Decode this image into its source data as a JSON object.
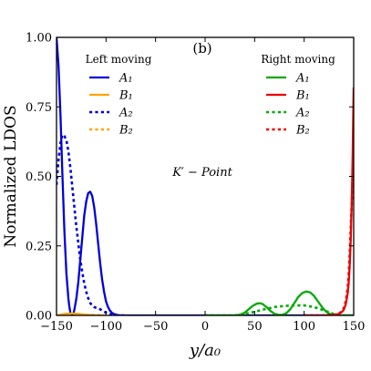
{
  "chart_data": {
    "type": "line",
    "panel_label": "(b)",
    "annotation": "K′ − Point",
    "xlabel": "y/a₀",
    "ylabel": "Normalized LDOS",
    "xlim": [
      -150,
      150
    ],
    "ylim": [
      0,
      1
    ],
    "xticks": [
      -150,
      -100,
      -50,
      0,
      50,
      100,
      150
    ],
    "yticks": [
      0.0,
      0.25,
      0.5,
      0.75,
      1.0
    ],
    "xtick_labels": [
      "−150",
      "−100",
      "−50",
      "0",
      "50",
      "100",
      "150"
    ],
    "ytick_labels": [
      "0.00",
      "0.25",
      "0.50",
      "0.75",
      "1.00"
    ],
    "grid": false,
    "legends": [
      {
        "title": "Left moving",
        "placement": "top-left",
        "entries": [
          {
            "label": "A₁",
            "color": "#0000dd",
            "dash": "solid"
          },
          {
            "label": "B₁",
            "color": "#ffa500",
            "dash": "solid"
          },
          {
            "label": "A₂",
            "color": "#0000dd",
            "dash": "dotted"
          },
          {
            "label": "B₂",
            "color": "#ffa500",
            "dash": "dotted"
          }
        ]
      },
      {
        "title": "Right moving",
        "placement": "top-right",
        "entries": [
          {
            "label": "A₁",
            "color": "#00aa00",
            "dash": "solid"
          },
          {
            "label": "B₁",
            "color": "#ee0000",
            "dash": "solid"
          },
          {
            "label": "A₂",
            "color": "#00aa00",
            "dash": "dotted"
          },
          {
            "label": "B₂",
            "color": "#ee0000",
            "dash": "dotted"
          }
        ]
      }
    ],
    "series": [
      {
        "legend_group": "Left moving",
        "label": "A₁",
        "color": "#0000dd",
        "dash": "solid",
        "x": [
          -150,
          -148,
          -146,
          -144,
          -142,
          -140,
          -138,
          -137,
          -136,
          -135,
          -134,
          -133,
          -132,
          -130,
          -128,
          -126,
          -124,
          -122,
          -120,
          -118,
          -116,
          -114,
          -112,
          -110,
          -108,
          -106,
          -104,
          -102,
          -100,
          -98,
          -96,
          -94,
          -92,
          -90,
          -88,
          -85,
          -80,
          -70,
          -60,
          -40,
          0,
          150
        ],
        "y": [
          1.0,
          0.9,
          0.72,
          0.5,
          0.3,
          0.15,
          0.06,
          0.03,
          0.01,
          0.0,
          0.0,
          0.005,
          0.02,
          0.06,
          0.12,
          0.2,
          0.28,
          0.36,
          0.41,
          0.44,
          0.445,
          0.43,
          0.39,
          0.33,
          0.26,
          0.19,
          0.13,
          0.085,
          0.05,
          0.03,
          0.017,
          0.009,
          0.005,
          0.003,
          0.001,
          0.0,
          0.0,
          0.0,
          0.0,
          0.0,
          0.0,
          0.0
        ]
      },
      {
        "legend_group": "Left moving",
        "label": "A₂",
        "color": "#0000dd",
        "dash": "dotted",
        "x": [
          -150,
          -148,
          -146,
          -144,
          -142,
          -140,
          -138,
          -136,
          -134,
          -132,
          -130,
          -128,
          -126,
          -124,
          -122,
          -120,
          -118,
          -116,
          -114,
          -112,
          -110,
          -108,
          -106,
          -104,
          -102,
          -100,
          -98,
          -96,
          -94,
          -92,
          -90,
          -85,
          -80
        ],
        "y": [
          0.47,
          0.56,
          0.62,
          0.65,
          0.645,
          0.63,
          0.59,
          0.53,
          0.46,
          0.39,
          0.32,
          0.26,
          0.2,
          0.155,
          0.115,
          0.085,
          0.062,
          0.045,
          0.035,
          0.03,
          0.027,
          0.025,
          0.022,
          0.018,
          0.014,
          0.01,
          0.007,
          0.005,
          0.003,
          0.002,
          0.001,
          0.0,
          0.0
        ]
      },
      {
        "legend_group": "Left moving",
        "label": "B₁",
        "color": "#ffa500",
        "dash": "solid",
        "x": [
          -150,
          -145,
          -140,
          -135,
          -130,
          -125,
          -120,
          -110,
          -100
        ],
        "y": [
          0.0,
          0.003,
          0.006,
          0.007,
          0.006,
          0.004,
          0.002,
          0.0,
          0.0
        ]
      },
      {
        "legend_group": "Left moving",
        "label": "B₂",
        "color": "#ffa500",
        "dash": "dotted",
        "x": [
          -150,
          -140,
          -130,
          -120,
          -110,
          -100
        ],
        "y": [
          0.0,
          0.002,
          0.003,
          0.002,
          0.001,
          0.0
        ]
      },
      {
        "legend_group": "Right moving",
        "label": "A₁",
        "color": "#00aa00",
        "dash": "solid",
        "x": [
          0,
          30,
          36,
          40,
          44,
          48,
          52,
          55,
          58,
          62,
          66,
          70,
          74,
          78,
          82,
          86,
          90,
          94,
          98,
          102,
          106,
          110,
          114,
          118,
          122,
          126,
          130,
          134,
          138,
          142,
          146,
          150
        ],
        "y": [
          0.0,
          0.0,
          0.003,
          0.01,
          0.022,
          0.034,
          0.042,
          0.044,
          0.041,
          0.03,
          0.016,
          0.006,
          0.002,
          0.002,
          0.008,
          0.022,
          0.044,
          0.066,
          0.08,
          0.086,
          0.083,
          0.07,
          0.05,
          0.03,
          0.014,
          0.005,
          0.001,
          0.0,
          0.0,
          0.0,
          0.0,
          0.0
        ]
      },
      {
        "legend_group": "Right moving",
        "label": "A₂",
        "color": "#00aa00",
        "dash": "dotted",
        "x": [
          0,
          30,
          40,
          50,
          60,
          70,
          80,
          90,
          100,
          110,
          120,
          126,
          130,
          135,
          140,
          150
        ],
        "y": [
          0.0,
          0.0,
          0.005,
          0.013,
          0.022,
          0.03,
          0.034,
          0.036,
          0.036,
          0.03,
          0.018,
          0.01,
          0.005,
          0.002,
          0.0,
          0.0
        ]
      },
      {
        "legend_group": "Right moving",
        "label": "B₁",
        "color": "#ee0000",
        "dash": "solid",
        "x": [
          100,
          120,
          130,
          135,
          138,
          140,
          142,
          144,
          145,
          146,
          147,
          148,
          149,
          150
        ],
        "y": [
          0.0,
          0.0,
          0.002,
          0.005,
          0.012,
          0.02,
          0.04,
          0.08,
          0.12,
          0.18,
          0.27,
          0.4,
          0.58,
          0.82
        ]
      },
      {
        "legend_group": "Right moving",
        "label": "B₂",
        "color": "#ee0000",
        "dash": "dotted",
        "x": [
          100,
          120,
          130,
          135,
          138,
          140,
          142,
          144,
          145,
          146,
          147,
          148,
          149,
          150
        ],
        "y": [
          0.0,
          0.0,
          0.002,
          0.006,
          0.015,
          0.026,
          0.05,
          0.1,
          0.15,
          0.22,
          0.31,
          0.4,
          0.48,
          0.54
        ]
      }
    ]
  }
}
